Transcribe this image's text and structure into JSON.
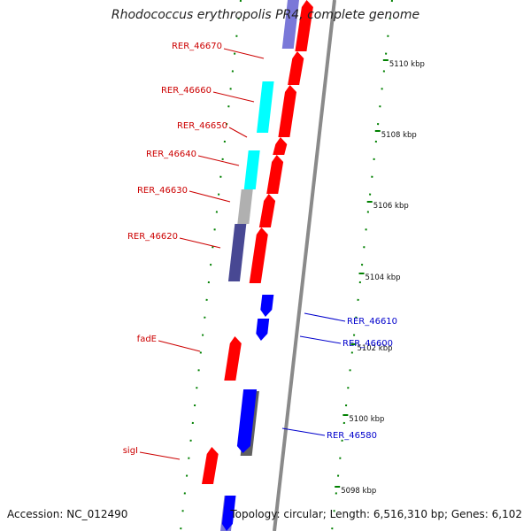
{
  "map": {
    "title": "Rhodococcus erythropolis PR4, complete genome",
    "accession_text": "Accession: NC_012490",
    "summary_text": "Topology: circular; Length: 6,516,310 bp; Genes: 6,102",
    "colors": {
      "forward": "#ff0000",
      "reverse_blue": "#0000ff",
      "slate": "#484893",
      "lavender": "#7a78d8",
      "cyan": "#00ffff",
      "gray": "#b0b0b0",
      "dark_gray": "#606060",
      "backbone": "#8a8a8a",
      "ticks": "#008000",
      "label_red": "#cc0000",
      "label_blue": "#0000cc"
    },
    "ticks": [
      "5110 kbp",
      "5108 kbp",
      "5106 kbp",
      "5104 kbp",
      "5102 kbp",
      "5100 kbp",
      "5098 kbp"
    ],
    "gene_labels": [
      {
        "id": "RER_46670",
        "strand": "forward"
      },
      {
        "id": "RER_46660",
        "strand": "forward"
      },
      {
        "id": "RER_46650",
        "strand": "forward"
      },
      {
        "id": "RER_46640",
        "strand": "forward"
      },
      {
        "id": "RER_46630",
        "strand": "forward"
      },
      {
        "id": "RER_46620",
        "strand": "forward"
      },
      {
        "id": "fadE",
        "strand": "forward"
      },
      {
        "id": "sigI",
        "strand": "forward"
      },
      {
        "id": "RER_46610",
        "strand": "reverse"
      },
      {
        "id": "RER_46600",
        "strand": "reverse"
      },
      {
        "id": "RER_46580",
        "strand": "reverse"
      }
    ]
  }
}
